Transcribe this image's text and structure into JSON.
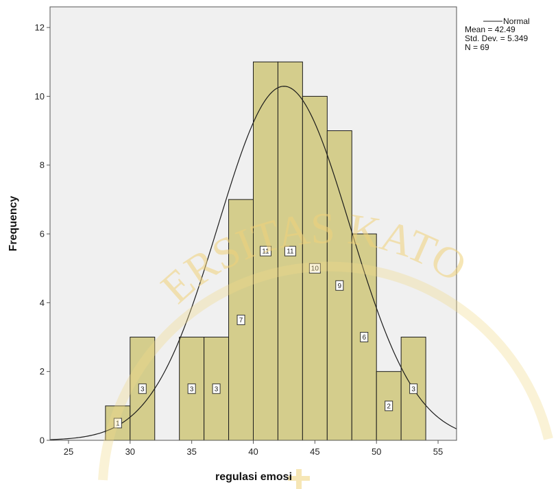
{
  "chart_data": {
    "type": "bar",
    "subtype": "histogram",
    "xlabel": "regulasi emosi",
    "ylabel": "Frequency",
    "xlim": [
      23.5,
      56.5
    ],
    "ylim": [
      0,
      12.6
    ],
    "xticks": [
      25,
      30,
      35,
      40,
      45,
      50,
      55
    ],
    "yticks": [
      0,
      2,
      4,
      6,
      8,
      10,
      12
    ],
    "bins": [
      {
        "start": 28,
        "end": 30,
        "count": 1
      },
      {
        "start": 30,
        "end": 32,
        "count": 3
      },
      {
        "start": 34,
        "end": 36,
        "count": 3
      },
      {
        "start": 36,
        "end": 38,
        "count": 3
      },
      {
        "start": 38,
        "end": 40,
        "count": 7
      },
      {
        "start": 40,
        "end": 42,
        "count": 11
      },
      {
        "start": 42,
        "end": 44,
        "count": 11
      },
      {
        "start": 44,
        "end": 46,
        "count": 10
      },
      {
        "start": 46,
        "end": 48,
        "count": 9
      },
      {
        "start": 48,
        "end": 50,
        "count": 6
      },
      {
        "start": 50,
        "end": 52,
        "count": 2
      },
      {
        "start": 52,
        "end": 54,
        "count": 3
      }
    ],
    "normal_curve": {
      "mean": 42.49,
      "std": 5.349,
      "n": 69,
      "bin_width": 2
    },
    "legend": {
      "position": "top-right",
      "line_label": "Normal",
      "stats": [
        "Mean = 42.49",
        "Std. Dev. = 5.349",
        "N = 69"
      ]
    },
    "colors": {
      "plot_background": "#f0f0f0",
      "bar_fill": "#d4cd8c",
      "bar_stroke": "#1a1a1a",
      "curve": "#1a1a1a"
    }
  },
  "watermark": {
    "text": "ERSITAS KATO"
  }
}
